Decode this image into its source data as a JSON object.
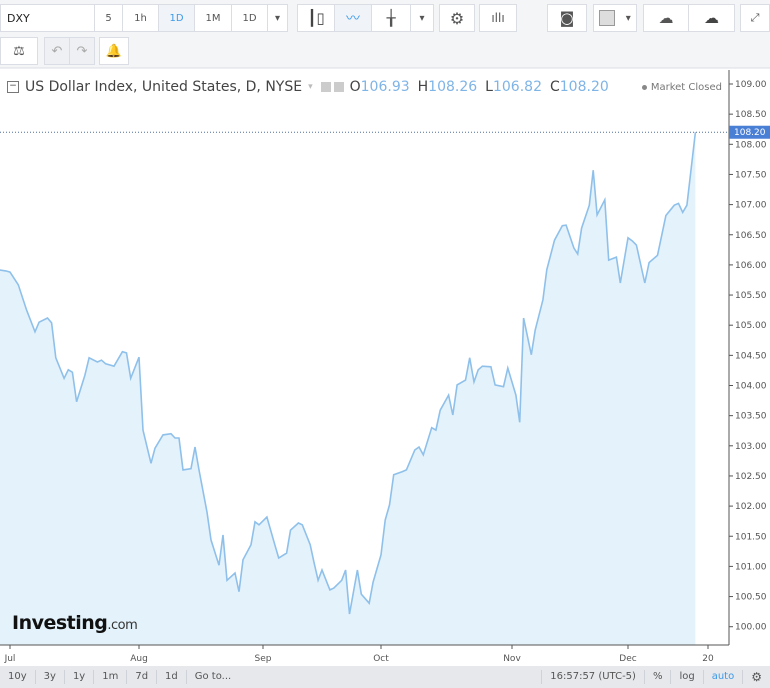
{
  "toolbar": {
    "symbol": "DXY",
    "intervals": [
      "5",
      "1h",
      "1D",
      "1M",
      "1D"
    ],
    "active_interval": "1D",
    "icons": [
      "candles-icon",
      "line-chart-icon",
      "indicator-icon",
      "settings-icon",
      "studies-icon",
      "camera-icon",
      "color-box-icon",
      "cloud-download-icon",
      "cloud-upload-icon",
      "fullscreen-icon",
      "compare-icon",
      "undo-icon",
      "redo-icon",
      "alert-add-icon"
    ]
  },
  "header": {
    "title": "US Dollar Index, United States, D, NYSE",
    "o_label": "O",
    "o": "106.93",
    "h_label": "H",
    "h": "108.26",
    "l_label": "L",
    "l": "106.82",
    "c_label": "C",
    "c": "108.20",
    "status": "Market Closed"
  },
  "logo": {
    "main": "Investing",
    "suffix": ".com"
  },
  "bottom_bar": {
    "ranges": [
      "10y",
      "3y",
      "1y",
      "1m",
      "7d",
      "1d"
    ],
    "goto": "Go to...",
    "time": "16:57:57 (UTC-5)",
    "percent": "%",
    "log": "log",
    "auto": "auto"
  },
  "colors": {
    "line": "#8fc0ea",
    "fill": "#e3f2fb",
    "accent": "#3d9ae8",
    "price_label": "#4a7fd6"
  },
  "chart_data": {
    "type": "area",
    "series_last_label": "108.20",
    "x_ticks": [
      [
        "07-01",
        "Jul"
      ],
      [
        "08-01",
        "Aug"
      ],
      [
        "09-01",
        "Sep"
      ],
      [
        "10-01",
        "Oct"
      ],
      [
        "11-01",
        "Nov"
      ],
      [
        "12-01",
        "Dec"
      ],
      [
        "12-20",
        "20"
      ]
    ],
    "y_ticks": [
      "100.00",
      "100.50",
      "101.00",
      "101.50",
      "102.00",
      "102.50",
      "103.00",
      "103.50",
      "104.00",
      "104.50",
      "105.00",
      "105.50",
      "106.00",
      "106.50",
      "107.00",
      "107.50",
      "108.00",
      "108.50",
      "109.00"
    ],
    "ylim": [
      99.7,
      109.25
    ],
    "points": [
      [
        "06-28",
        105.92
      ],
      [
        "06-30",
        105.9
      ],
      [
        "07-01",
        105.88
      ],
      [
        "07-03",
        105.67
      ],
      [
        "07-05",
        105.25
      ],
      [
        "07-07",
        104.89
      ],
      [
        "07-08",
        105.05
      ],
      [
        "07-10",
        105.12
      ],
      [
        "07-11",
        105.04
      ],
      [
        "07-12",
        104.46
      ],
      [
        "07-14",
        104.12
      ],
      [
        "07-15",
        104.26
      ],
      [
        "07-16",
        104.22
      ],
      [
        "07-17",
        103.73
      ],
      [
        "07-19",
        104.17
      ],
      [
        "07-20",
        104.46
      ],
      [
        "07-22",
        104.39
      ],
      [
        "07-23",
        104.42
      ],
      [
        "07-24",
        104.36
      ],
      [
        "07-26",
        104.32
      ],
      [
        "07-28",
        104.56
      ],
      [
        "07-29",
        104.54
      ],
      [
        "07-30",
        104.12
      ],
      [
        "08-01",
        104.47
      ],
      [
        "08-02",
        103.26
      ],
      [
        "08-04",
        102.71
      ],
      [
        "08-05",
        102.96
      ],
      [
        "08-07",
        103.18
      ],
      [
        "08-09",
        103.2
      ],
      [
        "08-10",
        103.13
      ],
      [
        "08-11",
        103.13
      ],
      [
        "08-12",
        102.6
      ],
      [
        "08-14",
        102.62
      ],
      [
        "08-15",
        102.98
      ],
      [
        "08-16",
        102.6
      ],
      [
        "08-18",
        101.9
      ],
      [
        "08-19",
        101.44
      ],
      [
        "08-21",
        101.02
      ],
      [
        "08-22",
        101.52
      ],
      [
        "08-23",
        100.77
      ],
      [
        "08-25",
        100.89
      ],
      [
        "08-26",
        100.58
      ],
      [
        "08-27",
        101.11
      ],
      [
        "08-29",
        101.36
      ],
      [
        "08-30",
        101.74
      ],
      [
        "08-31",
        101.69
      ],
      [
        "09-02",
        101.82
      ],
      [
        "09-04",
        101.36
      ],
      [
        "09-05",
        101.14
      ],
      [
        "09-07",
        101.22
      ],
      [
        "09-08",
        101.6
      ],
      [
        "09-10",
        101.72
      ],
      [
        "09-11",
        101.69
      ],
      [
        "09-13",
        101.36
      ],
      [
        "09-14",
        101.06
      ],
      [
        "09-15",
        100.77
      ],
      [
        "09-16",
        100.94
      ],
      [
        "09-18",
        100.61
      ],
      [
        "09-19",
        100.64
      ],
      [
        "09-21",
        100.77
      ],
      [
        "09-22",
        100.94
      ],
      [
        "09-23",
        100.21
      ],
      [
        "09-25",
        100.94
      ],
      [
        "09-26",
        100.54
      ],
      [
        "09-28",
        100.39
      ],
      [
        "09-29",
        100.74
      ],
      [
        "10-01",
        101.19
      ],
      [
        "10-02",
        101.77
      ],
      [
        "10-03",
        102.02
      ],
      [
        "10-04",
        102.52
      ],
      [
        "10-06",
        102.57
      ],
      [
        "10-07",
        102.6
      ],
      [
        "10-09",
        102.93
      ],
      [
        "10-10",
        102.98
      ],
      [
        "10-11",
        102.85
      ],
      [
        "10-13",
        103.3
      ],
      [
        "10-14",
        103.26
      ],
      [
        "10-15",
        103.59
      ],
      [
        "10-17",
        103.84
      ],
      [
        "10-18",
        103.51
      ],
      [
        "10-19",
        104.01
      ],
      [
        "10-21",
        104.09
      ],
      [
        "10-22",
        104.46
      ],
      [
        "10-23",
        104.06
      ],
      [
        "10-24",
        104.26
      ],
      [
        "10-25",
        104.32
      ],
      [
        "10-27",
        104.31
      ],
      [
        "10-28",
        104.01
      ],
      [
        "10-30",
        103.98
      ],
      [
        "10-31",
        104.29
      ],
      [
        "11-02",
        103.84
      ],
      [
        "11-03",
        103.39
      ],
      [
        "11-04",
        105.12
      ],
      [
        "11-06",
        104.51
      ],
      [
        "11-07",
        104.92
      ],
      [
        "11-09",
        105.42
      ],
      [
        "11-10",
        105.92
      ],
      [
        "11-12",
        106.41
      ],
      [
        "11-14",
        106.65
      ],
      [
        "11-15",
        106.66
      ],
      [
        "11-17",
        106.28
      ],
      [
        "11-18",
        106.18
      ],
      [
        "11-19",
        106.61
      ],
      [
        "11-21",
        106.99
      ],
      [
        "11-22",
        107.57
      ],
      [
        "11-23",
        106.83
      ],
      [
        "11-25",
        107.08
      ],
      [
        "11-26",
        106.08
      ],
      [
        "11-28",
        106.13
      ],
      [
        "11-29",
        105.7
      ],
      [
        "12-01",
        106.45
      ],
      [
        "12-02",
        106.4
      ],
      [
        "12-03",
        106.33
      ],
      [
        "12-05",
        105.7
      ],
      [
        "12-06",
        106.04
      ],
      [
        "12-08",
        106.16
      ],
      [
        "12-09",
        106.49
      ],
      [
        "12-10",
        106.82
      ],
      [
        "12-12",
        106.99
      ],
      [
        "12-13",
        107.02
      ],
      [
        "12-14",
        106.87
      ],
      [
        "12-15",
        106.99
      ],
      [
        "12-17",
        108.2
      ]
    ]
  }
}
